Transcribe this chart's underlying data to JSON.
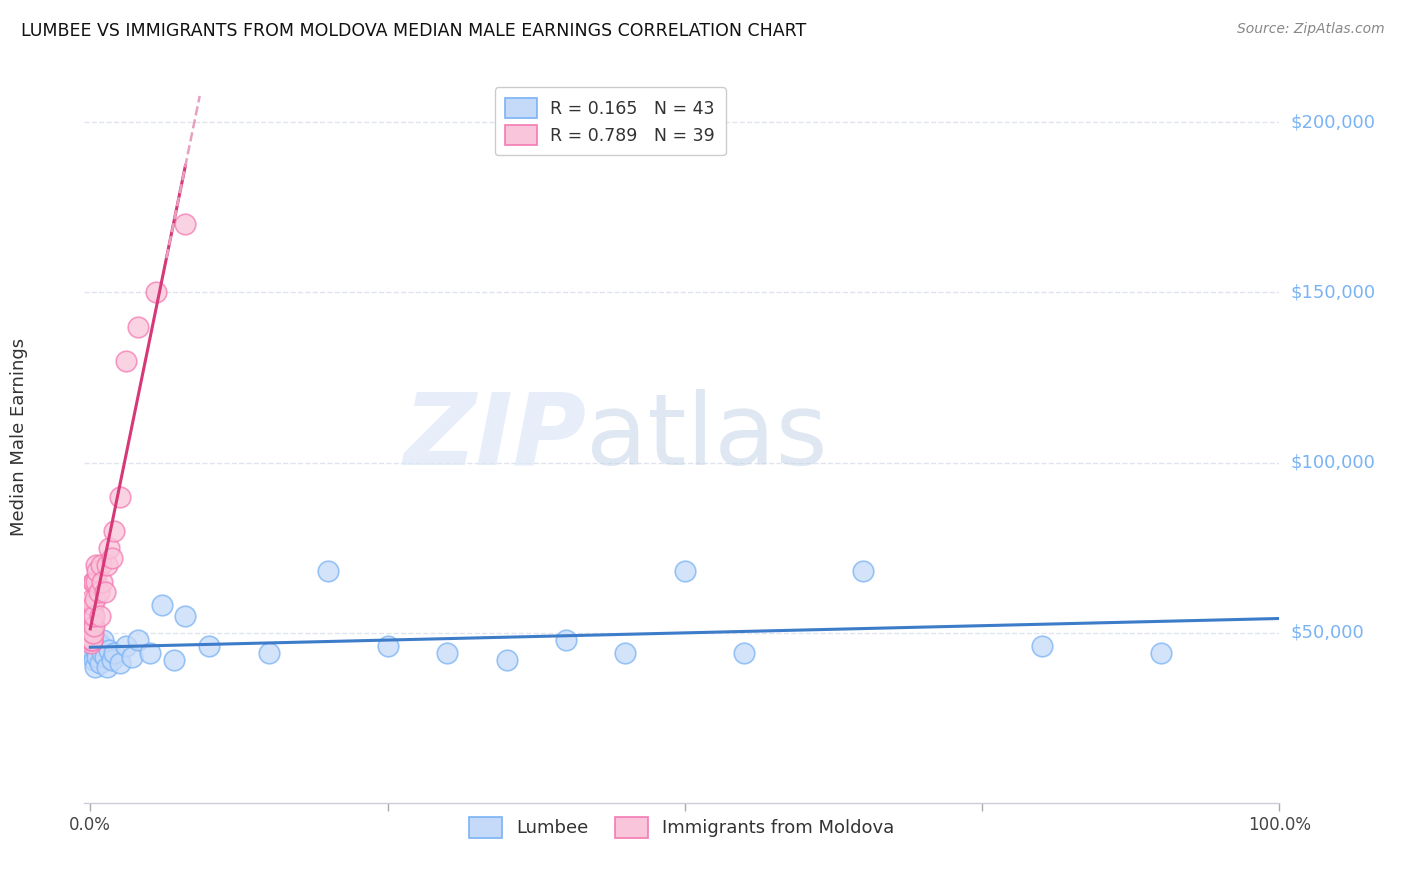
{
  "title": "LUMBEE VS IMMIGRANTS FROM MOLDOVA MEDIAN MALE EARNINGS CORRELATION CHART",
  "source": "Source: ZipAtlas.com",
  "ylabel": "Median Male Earnings",
  "watermark_zip": "ZIP",
  "watermark_atlas": "atlas",
  "ytick_labels": [
    "$50,000",
    "$100,000",
    "$150,000",
    "$200,000"
  ],
  "ytick_values": [
    50000,
    100000,
    150000,
    200000
  ],
  "ylim": [
    0,
    215000
  ],
  "blue_color": "#7ab3f5",
  "pink_color": "#f57ab3",
  "blue_fill": "#c5daf9",
  "pink_fill": "#f9c5da",
  "line_blue": "#3d7cc9",
  "line_pink": "#d63878",
  "grid_color": "#e0e4ee",
  "background_color": "#ffffff",
  "lumbee_r": 0.165,
  "lumbee_n": 43,
  "moldova_r": 0.789,
  "moldova_n": 39,
  "lumbee_x": [
    0.0008,
    0.001,
    0.0012,
    0.0015,
    0.002,
    0.0022,
    0.0025,
    0.003,
    0.0032,
    0.004,
    0.005,
    0.006,
    0.007,
    0.008,
    0.009,
    0.01,
    0.011,
    0.012,
    0.014,
    0.016,
    0.018,
    0.02,
    0.025,
    0.03,
    0.035,
    0.04,
    0.05,
    0.06,
    0.07,
    0.08,
    0.1,
    0.15,
    0.2,
    0.25,
    0.3,
    0.35,
    0.4,
    0.45,
    0.5,
    0.55,
    0.65,
    0.8,
    0.9
  ],
  "lumbee_y": [
    46000,
    50000,
    44000,
    48000,
    52000,
    47000,
    44000,
    42000,
    48000,
    40000,
    45000,
    43000,
    47000,
    41000,
    46000,
    44000,
    48000,
    43000,
    40000,
    45000,
    42000,
    44000,
    41000,
    46000,
    43000,
    48000,
    44000,
    58000,
    42000,
    55000,
    46000,
    44000,
    68000,
    46000,
    44000,
    42000,
    48000,
    44000,
    68000,
    44000,
    68000,
    46000,
    44000
  ],
  "moldova_x": [
    0.0004,
    0.0005,
    0.0006,
    0.0007,
    0.0008,
    0.0009,
    0.001,
    0.0011,
    0.0012,
    0.0013,
    0.0014,
    0.0015,
    0.0016,
    0.0017,
    0.0018,
    0.002,
    0.0022,
    0.0025,
    0.003,
    0.0032,
    0.0035,
    0.004,
    0.0045,
    0.005,
    0.006,
    0.007,
    0.008,
    0.009,
    0.01,
    0.012,
    0.014,
    0.016,
    0.018,
    0.02,
    0.025,
    0.03,
    0.04,
    0.055,
    0.08
  ],
  "moldova_y": [
    48000,
    50000,
    52000,
    47000,
    55000,
    50000,
    48000,
    52000,
    55000,
    48000,
    50000,
    60000,
    52000,
    48000,
    55000,
    50000,
    65000,
    58000,
    52000,
    65000,
    55000,
    60000,
    65000,
    70000,
    68000,
    62000,
    55000,
    70000,
    65000,
    62000,
    70000,
    75000,
    72000,
    80000,
    90000,
    130000,
    140000,
    150000,
    170000
  ]
}
